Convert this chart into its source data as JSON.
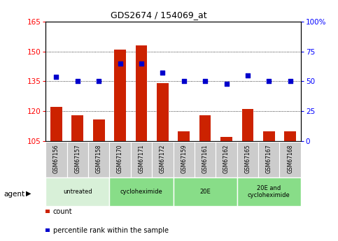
{
  "title": "GDS2674 / 154069_at",
  "samples": [
    "GSM67156",
    "GSM67157",
    "GSM67158",
    "GSM67170",
    "GSM67171",
    "GSM67172",
    "GSM67159",
    "GSM67161",
    "GSM67162",
    "GSM67165",
    "GSM67167",
    "GSM67168"
  ],
  "counts": [
    122,
    118,
    116,
    151,
    153,
    134,
    110,
    118,
    107,
    121,
    110,
    110
  ],
  "percentiles": [
    54,
    50,
    50,
    65,
    65,
    57,
    50,
    50,
    48,
    55,
    50,
    50
  ],
  "ylim_left": [
    105,
    165
  ],
  "ylim_right": [
    0,
    100
  ],
  "yticks_left": [
    105,
    120,
    135,
    150,
    165
  ],
  "yticks_right": [
    0,
    25,
    50,
    75,
    100
  ],
  "group_labels": [
    "untreated",
    "cycloheximide",
    "20E",
    "20E and\ncycloheximide"
  ],
  "group_ranges": [
    [
      0,
      3
    ],
    [
      3,
      6
    ],
    [
      6,
      9
    ],
    [
      9,
      12
    ]
  ],
  "group_colors": [
    "#d8f0d8",
    "#88dd88",
    "#88dd88",
    "#88dd88"
  ],
  "bar_color": "#cc2200",
  "dot_color": "#0000cc",
  "sample_bg": "#cccccc",
  "agent_label": "agent",
  "legend_count": "count",
  "legend_pct": "percentile rank within the sample"
}
